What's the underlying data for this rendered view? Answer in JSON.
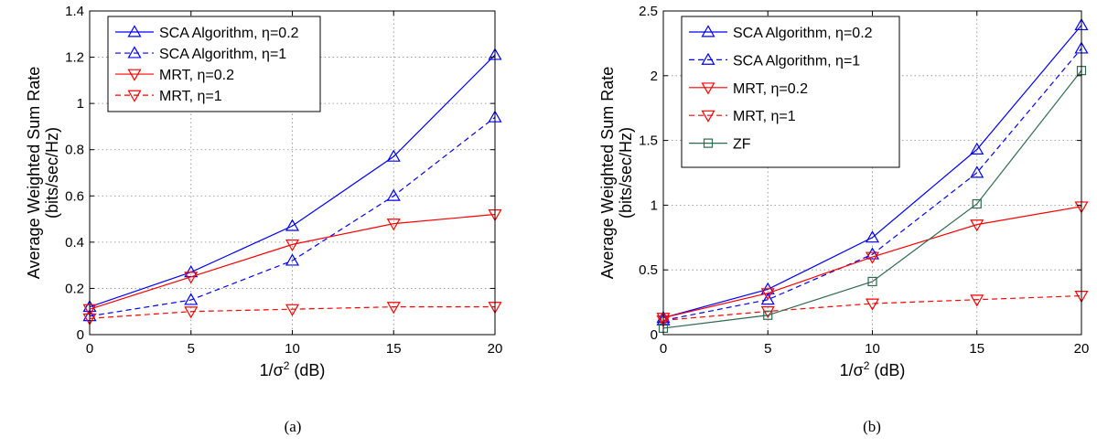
{
  "chart_data": [
    {
      "type": "line",
      "caption": "(a)",
      "xlabel_main": "1/σ",
      "xlabel_sup": "2",
      "xlabel_unit": " (dB)",
      "ylabel_line1": "Average Weighted Sum Rate",
      "ylabel_line2": "(bits/sec/Hz)",
      "x": [
        0,
        5,
        10,
        15,
        20
      ],
      "xlim": [
        0,
        20
      ],
      "ylim": [
        0,
        1.4
      ],
      "xticks": [
        0,
        5,
        10,
        15,
        20
      ],
      "xtick_labels": [
        "0",
        "5",
        "10",
        "15",
        "20"
      ],
      "yticks": [
        0,
        0.2,
        0.4,
        0.6,
        0.8,
        1,
        1.2,
        1.4
      ],
      "ytick_labels": [
        "0",
        "0.2",
        "0.4",
        "0.6",
        "0.8",
        "1",
        "1.2",
        "1.4"
      ],
      "grid": true,
      "legend_position": "top-left",
      "series": [
        {
          "name": "SCA Algorithm, η=0.2",
          "values": [
            0.12,
            0.27,
            0.47,
            0.77,
            1.21
          ],
          "color": "#0000ff",
          "dash": "solid",
          "marker": "triangle-up"
        },
        {
          "name": "SCA Algorithm, η=1",
          "values": [
            0.08,
            0.15,
            0.32,
            0.6,
            0.94
          ],
          "color": "#0000ff",
          "dash": "dashed",
          "marker": "triangle-up"
        },
        {
          "name": "MRT, η=0.2",
          "values": [
            0.11,
            0.25,
            0.39,
            0.48,
            0.52
          ],
          "color": "#ff0000",
          "dash": "solid",
          "marker": "triangle-down"
        },
        {
          "name": "MRT, η=1",
          "values": [
            0.07,
            0.1,
            0.11,
            0.12,
            0.12
          ],
          "color": "#ff0000",
          "dash": "dashed",
          "marker": "triangle-down"
        }
      ]
    },
    {
      "type": "line",
      "caption": "(b)",
      "xlabel_main": "1/σ",
      "xlabel_sup": "2",
      "xlabel_unit": " (dB)",
      "ylabel_line1": "Average Weighted Sum Rate",
      "ylabel_line2": "(bits/sec/Hz)",
      "x": [
        0,
        5,
        10,
        15,
        20
      ],
      "xlim": [
        0,
        20
      ],
      "ylim": [
        0,
        2.5
      ],
      "xticks": [
        0,
        5,
        10,
        15,
        20
      ],
      "xtick_labels": [
        "0",
        "5",
        "10",
        "15",
        "20"
      ],
      "yticks": [
        0,
        0.5,
        1,
        1.5,
        2,
        2.5
      ],
      "ytick_labels": [
        "0",
        "0.5",
        "1",
        "1.5",
        "2",
        "2.5"
      ],
      "grid": true,
      "legend_position": "top-left",
      "series": [
        {
          "name": "SCA Algorithm, η=0.2",
          "values": [
            0.13,
            0.35,
            0.75,
            1.43,
            2.39
          ],
          "color": "#0000ff",
          "dash": "solid",
          "marker": "triangle-up"
        },
        {
          "name": "SCA Algorithm, η=1",
          "values": [
            0.11,
            0.27,
            0.62,
            1.25,
            2.21
          ],
          "color": "#0000ff",
          "dash": "dashed",
          "marker": "triangle-up"
        },
        {
          "name": "MRT, η=0.2",
          "values": [
            0.13,
            0.32,
            0.6,
            0.85,
            0.99
          ],
          "color": "#ff0000",
          "dash": "solid",
          "marker": "triangle-down"
        },
        {
          "name": "MRT, η=1",
          "values": [
            0.11,
            0.18,
            0.24,
            0.27,
            0.3
          ],
          "color": "#ff0000",
          "dash": "dashed",
          "marker": "triangle-down"
        },
        {
          "name": "ZF",
          "values": [
            0.05,
            0.15,
            0.41,
            1.01,
            2.04
          ],
          "color": "#2f6a4f",
          "dash": "solid",
          "marker": "square"
        }
      ]
    }
  ]
}
